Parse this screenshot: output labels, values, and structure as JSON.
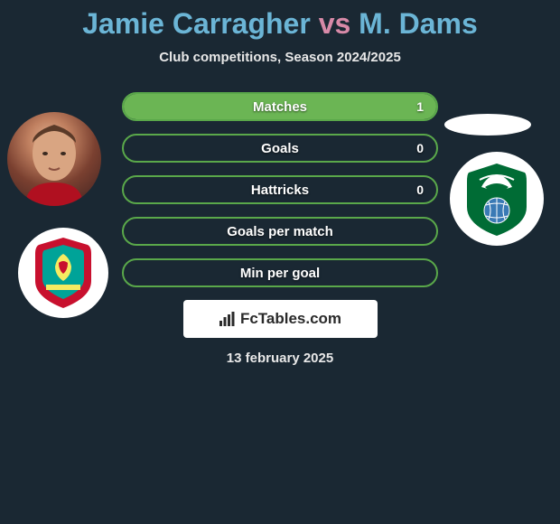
{
  "title": {
    "player1": "Jamie Carragher",
    "vs": "vs",
    "player2": "M. Dams",
    "player1_color": "#6bb5d6",
    "vs_color": "#d88aa8",
    "player2_color": "#6bb5d6"
  },
  "subtitle": "Club competitions, Season 2024/2025",
  "stats": {
    "rows": [
      {
        "label": "Matches",
        "right_value": "1",
        "right_fill_pct": 100
      },
      {
        "label": "Goals",
        "right_value": "0",
        "right_fill_pct": 0
      },
      {
        "label": "Hattricks",
        "right_value": "0",
        "right_fill_pct": 0
      },
      {
        "label": "Goals per match",
        "right_value": "",
        "right_fill_pct": 0
      },
      {
        "label": "Min per goal",
        "right_value": "",
        "right_fill_pct": 0
      }
    ],
    "border_color": "#5aa84a",
    "fill_color": "#6bb554",
    "label_color": "#ffffff",
    "label_fontsize": 15
  },
  "brand": {
    "text": "FcTables.com"
  },
  "date": "13 february 2025",
  "background_color": "#1a2833",
  "icons": {
    "player_left": "player-photo",
    "club_left": "liverpool-crest",
    "blank_right": "player-placeholder",
    "club_right": "al-ahli-crest"
  },
  "club_left_colors": {
    "shield": "#c8102e",
    "inner": "#00a398",
    "bird": "#f6eb61"
  },
  "club_right_colors": {
    "shield": "#006c35",
    "accent": "#ffffff",
    "ball": "#3a7ab5"
  }
}
